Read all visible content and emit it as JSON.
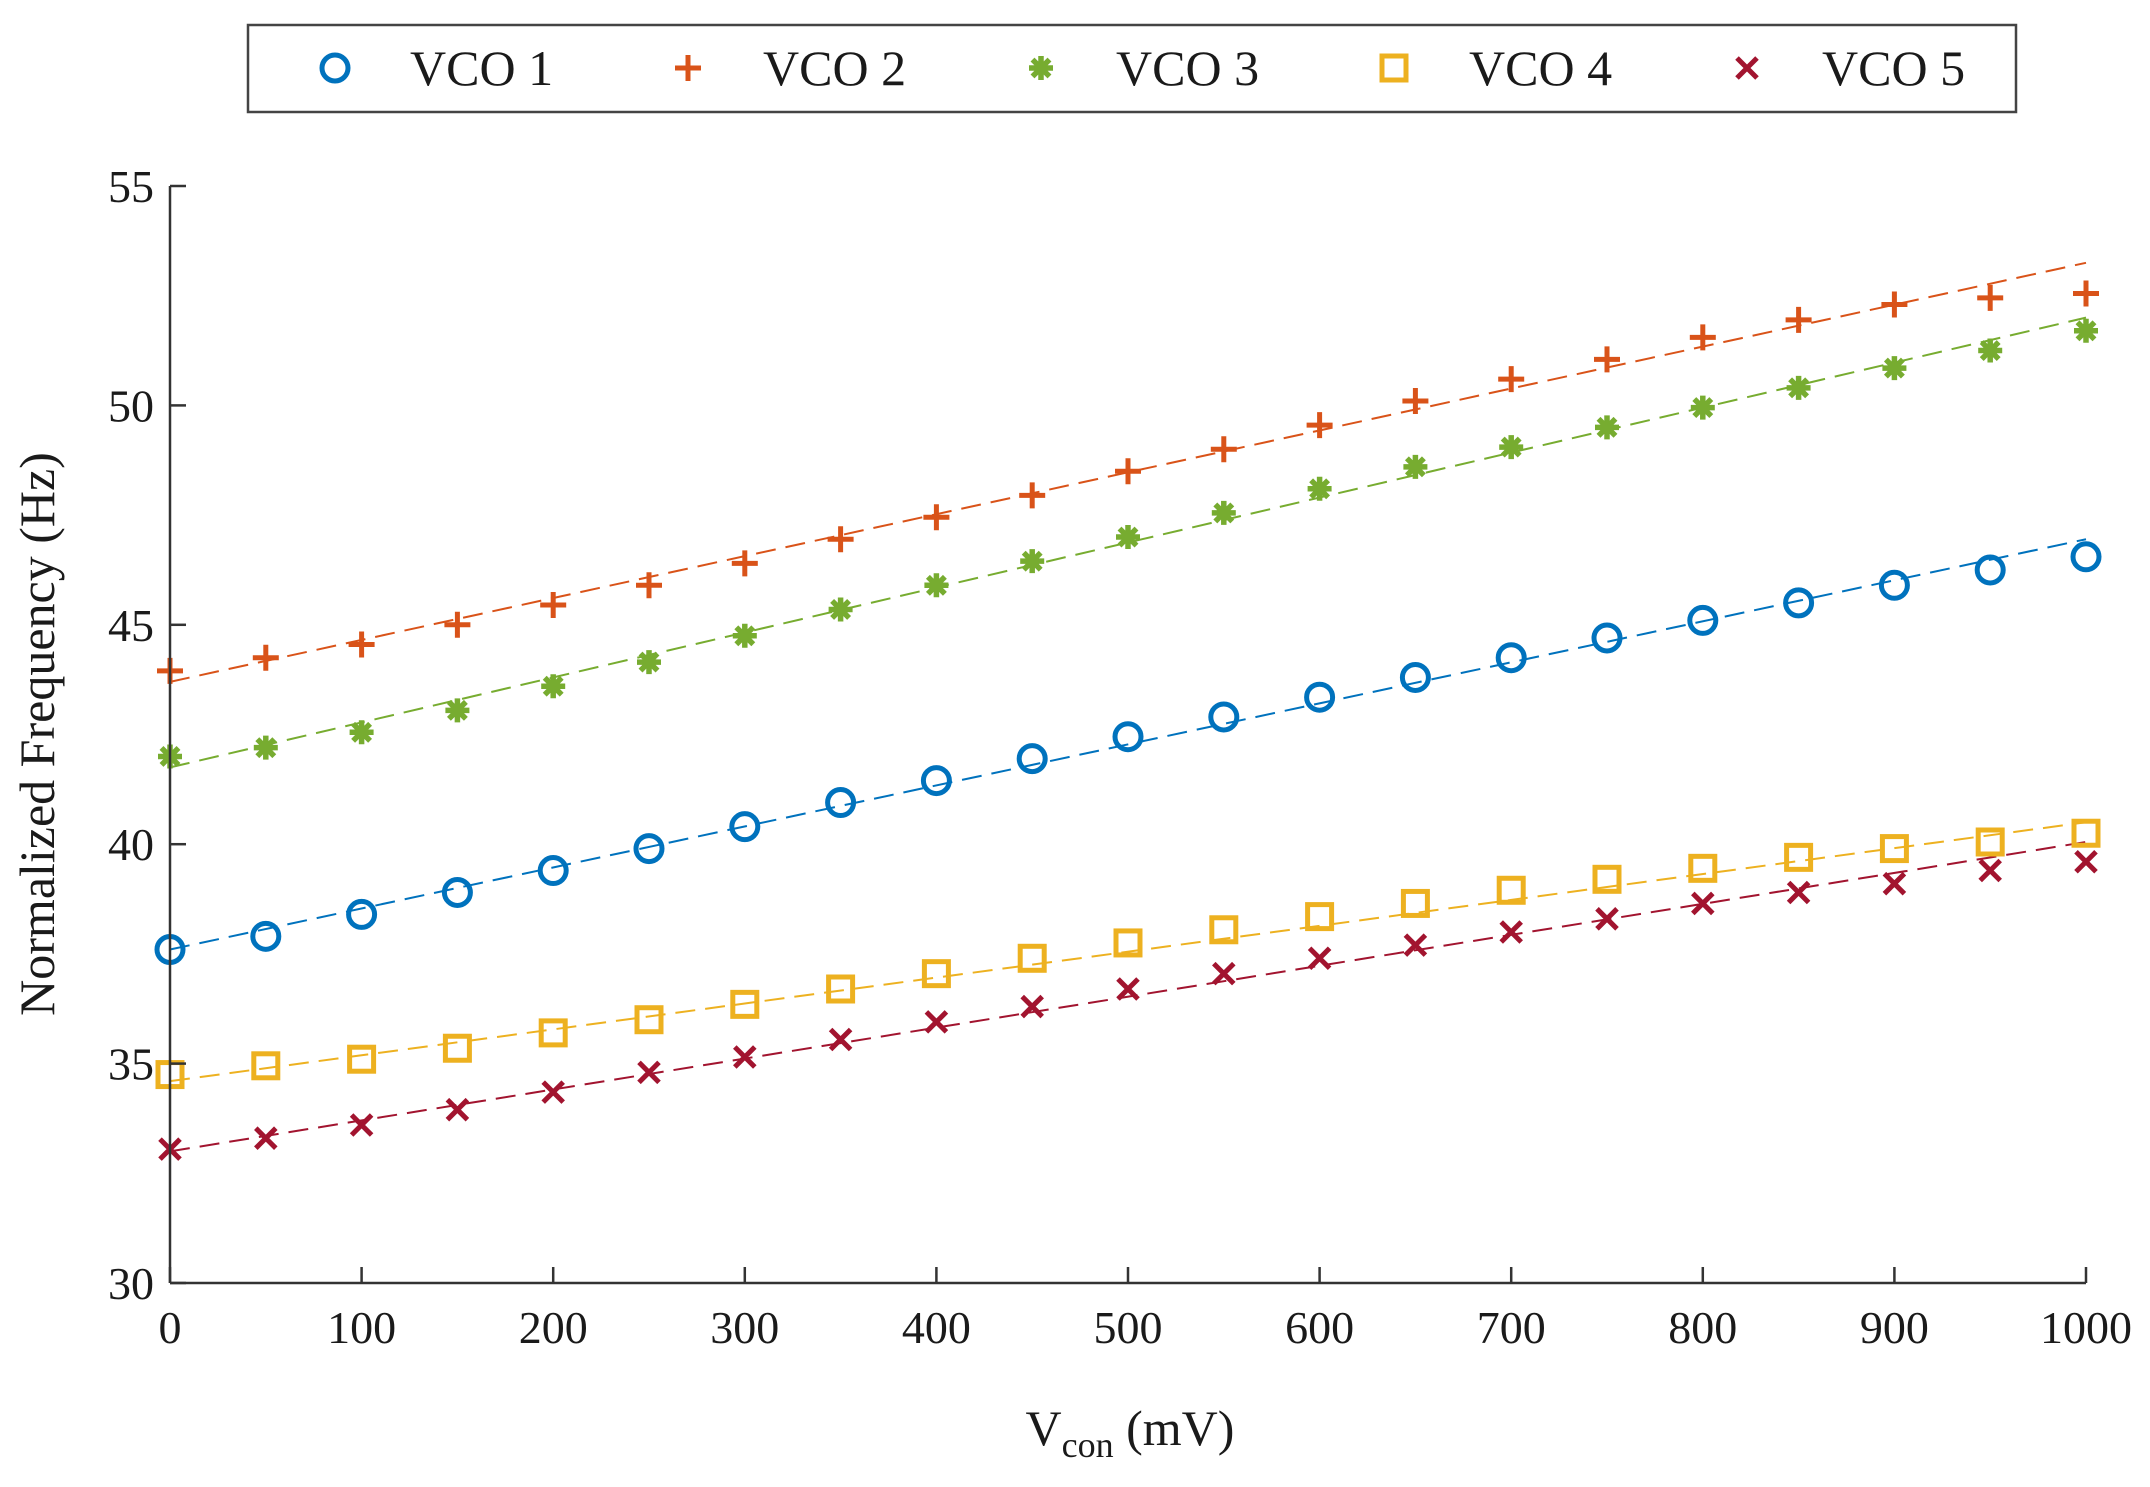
{
  "chart_data": {
    "type": "scatter",
    "title": "",
    "xlabel": "V",
    "xlabel_sub": "con",
    "xlabel_unit": " (mV)",
    "ylabel": "Normalized Frequency (Hz)",
    "xlim": [
      0,
      1000
    ],
    "ylim": [
      30,
      55
    ],
    "xticks": [
      0,
      100,
      200,
      300,
      400,
      500,
      600,
      700,
      800,
      900,
      1000
    ],
    "yticks": [
      30,
      35,
      40,
      45,
      50,
      55
    ],
    "grid": false,
    "legend": "top-center, horizontal",
    "x": [
      0,
      50,
      100,
      150,
      200,
      250,
      300,
      350,
      400,
      450,
      500,
      550,
      600,
      650,
      700,
      750,
      800,
      850,
      900,
      950,
      1000
    ],
    "series": [
      {
        "name": "VCO 1",
        "marker": "circle",
        "color": "#0072BD",
        "values": [
          37.6,
          37.9,
          38.4,
          38.9,
          39.4,
          39.9,
          40.4,
          40.95,
          41.45,
          41.95,
          42.45,
          42.9,
          43.35,
          43.8,
          44.25,
          44.7,
          45.1,
          45.5,
          45.9,
          46.25,
          46.55
        ],
        "fit": [
          37.6,
          46.95
        ]
      },
      {
        "name": "VCO 2",
        "marker": "plus",
        "color": "#D95319",
        "values": [
          43.95,
          44.25,
          44.55,
          45.0,
          45.45,
          45.9,
          46.4,
          46.95,
          47.45,
          47.95,
          48.5,
          49.0,
          49.55,
          50.1,
          50.6,
          51.05,
          51.55,
          51.95,
          52.3,
          52.45,
          52.55
        ],
        "fit": [
          43.7,
          53.25
        ]
      },
      {
        "name": "VCO 3",
        "marker": "asterisk",
        "color": "#77AC30",
        "values": [
          42.0,
          42.2,
          42.55,
          43.05,
          43.6,
          44.15,
          44.75,
          45.35,
          45.9,
          46.45,
          47.0,
          47.55,
          48.1,
          48.6,
          49.05,
          49.5,
          49.95,
          50.4,
          50.85,
          51.25,
          51.7
        ],
        "fit": [
          41.75,
          52.0
        ]
      },
      {
        "name": "VCO 4",
        "marker": "square",
        "color": "#EDB120",
        "values": [
          34.75,
          34.95,
          35.1,
          35.35,
          35.7,
          36.0,
          36.35,
          36.7,
          37.05,
          37.4,
          37.75,
          38.05,
          38.35,
          38.65,
          38.95,
          39.2,
          39.45,
          39.7,
          39.9,
          40.05,
          40.25
        ],
        "fit": [
          34.6,
          40.5
        ]
      },
      {
        "name": "VCO 5",
        "marker": "x",
        "color": "#A2142F",
        "values": [
          33.05,
          33.3,
          33.6,
          33.95,
          34.35,
          34.8,
          35.15,
          35.55,
          35.95,
          36.3,
          36.7,
          37.05,
          37.4,
          37.7,
          38.0,
          38.3,
          38.65,
          38.9,
          39.1,
          39.4,
          39.6
        ],
        "fit": [
          33.0,
          40.05
        ]
      }
    ]
  }
}
